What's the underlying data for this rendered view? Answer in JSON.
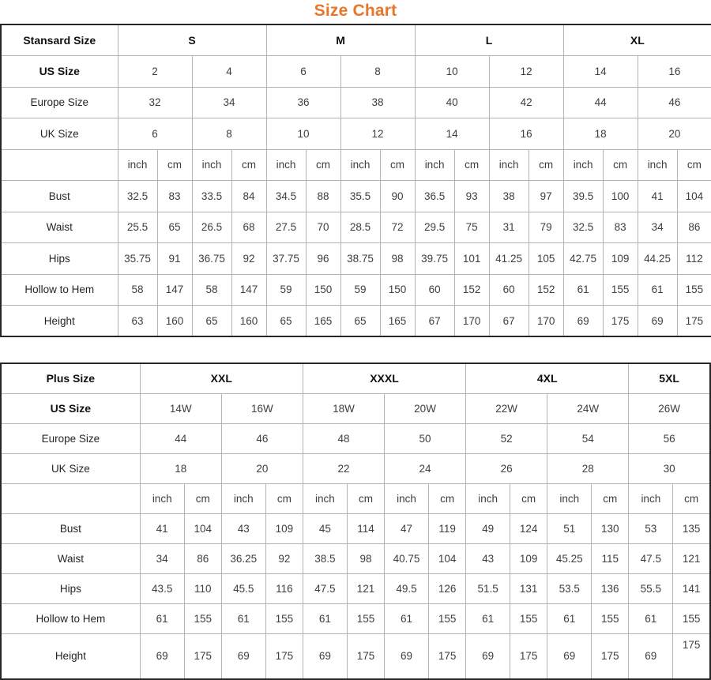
{
  "title": "Size Chart",
  "accent_color": "#E8762A",
  "standard_table": {
    "corner_label": "Stansard Size",
    "size_groups": [
      {
        "label": "S",
        "span": 2
      },
      {
        "label": "M",
        "span": 2
      },
      {
        "label": "L",
        "span": 2
      },
      {
        "label": "XL",
        "span": 2
      }
    ],
    "size_rows": [
      {
        "label": "US Size",
        "bold": true,
        "values": [
          "2",
          "4",
          "6",
          "8",
          "10",
          "12",
          "14",
          "16"
        ]
      },
      {
        "label": "Europe Size",
        "bold": false,
        "values": [
          "32",
          "34",
          "36",
          "38",
          "40",
          "42",
          "44",
          "46"
        ]
      },
      {
        "label": "UK Size",
        "bold": false,
        "values": [
          "6",
          "8",
          "10",
          "12",
          "14",
          "16",
          "18",
          "20"
        ]
      }
    ],
    "unit_labels": [
      "inch",
      "cm"
    ],
    "measurement_rows": [
      {
        "label": "Bust",
        "values": [
          "32.5",
          "83",
          "33.5",
          "84",
          "34.5",
          "88",
          "35.5",
          "90",
          "36.5",
          "93",
          "38",
          "97",
          "39.5",
          "100",
          "41",
          "104"
        ]
      },
      {
        "label": "Waist",
        "values": [
          "25.5",
          "65",
          "26.5",
          "68",
          "27.5",
          "70",
          "28.5",
          "72",
          "29.5",
          "75",
          "31",
          "79",
          "32.5",
          "83",
          "34",
          "86"
        ]
      },
      {
        "label": "Hips",
        "values": [
          "35.75",
          "91",
          "36.75",
          "92",
          "37.75",
          "96",
          "38.75",
          "98",
          "39.75",
          "101",
          "41.25",
          "105",
          "42.75",
          "109",
          "44.25",
          "112"
        ]
      },
      {
        "label": "Hollow to Hem",
        "values": [
          "58",
          "147",
          "58",
          "147",
          "59",
          "150",
          "59",
          "150",
          "60",
          "152",
          "60",
          "152",
          "61",
          "155",
          "61",
          "155"
        ]
      },
      {
        "label": "Height",
        "values": [
          "63",
          "160",
          "65",
          "160",
          "65",
          "165",
          "65",
          "165",
          "67",
          "170",
          "67",
          "170",
          "69",
          "175",
          "69",
          "175"
        ]
      }
    ]
  },
  "plus_table": {
    "corner_label": "Plus Size",
    "size_groups": [
      {
        "label": "XXL",
        "span": 2
      },
      {
        "label": "XXXL",
        "span": 2
      },
      {
        "label": "4XL",
        "span": 2
      },
      {
        "label": "5XL",
        "span": 1
      }
    ],
    "size_rows": [
      {
        "label": "US Size",
        "bold": true,
        "values": [
          "14W",
          "16W",
          "18W",
          "20W",
          "22W",
          "24W",
          "26W"
        ]
      },
      {
        "label": "Europe Size",
        "bold": false,
        "values": [
          "44",
          "46",
          "48",
          "50",
          "52",
          "54",
          "56"
        ]
      },
      {
        "label": "UK Size",
        "bold": false,
        "values": [
          "18",
          "20",
          "22",
          "24",
          "26",
          "28",
          "30"
        ]
      }
    ],
    "unit_labels": [
      "inch",
      "cm"
    ],
    "measurement_rows": [
      {
        "label": "Bust",
        "values": [
          "41",
          "104",
          "43",
          "109",
          "45",
          "114",
          "47",
          "119",
          "49",
          "124",
          "51",
          "130",
          "53",
          "135"
        ]
      },
      {
        "label": "Waist",
        "values": [
          "34",
          "86",
          "36.25",
          "92",
          "38.5",
          "98",
          "40.75",
          "104",
          "43",
          "109",
          "45.25",
          "115",
          "47.5",
          "121"
        ]
      },
      {
        "label": "Hips",
        "values": [
          "43.5",
          "110",
          "45.5",
          "116",
          "47.5",
          "121",
          "49.5",
          "126",
          "51.5",
          "131",
          "53.5",
          "136",
          "55.5",
          "141"
        ]
      },
      {
        "label": "Hollow to Hem",
        "values": [
          "61",
          "155",
          "61",
          "155",
          "61",
          "155",
          "61",
          "155",
          "61",
          "155",
          "61",
          "155",
          "61",
          "155"
        ]
      },
      {
        "label": "Height",
        "values": [
          "69",
          "175",
          "69",
          "175",
          "69",
          "175",
          "69",
          "175",
          "69",
          "175",
          "69",
          "175",
          "69",
          "175"
        ]
      }
    ]
  }
}
